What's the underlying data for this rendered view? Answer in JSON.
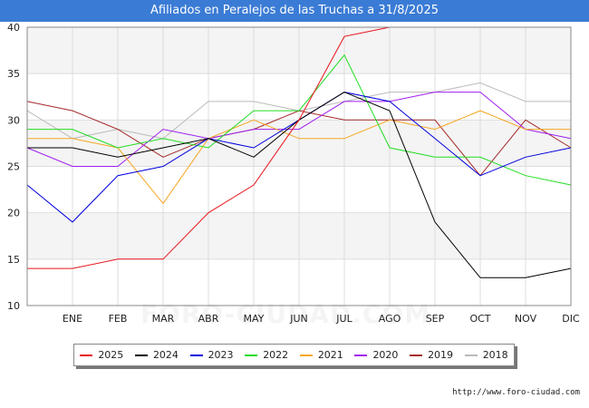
{
  "title": "Afiliados en Peralejos de las Truchas a 31/8/2025",
  "footer_url": "http://www.foro-ciudad.com",
  "watermark": "FORO-CIUDAD.COM",
  "chart_data": {
    "type": "line",
    "title": "Afiliados en Peralejos de las Truchas a 31/8/2025",
    "categories": [
      "",
      "ENE",
      "FEB",
      "MAR",
      "ABR",
      "MAY",
      "JUN",
      "JUL",
      "AGO",
      "SEP",
      "OCT",
      "NOV",
      "DIC"
    ],
    "ylim": [
      10,
      40
    ],
    "yticks": [
      10,
      15,
      20,
      25,
      30,
      35,
      40
    ],
    "grid": true,
    "legend_position": "bottom",
    "series": [
      {
        "name": "2025",
        "color": "#e8141b",
        "values": [
          14,
          14,
          15,
          15,
          20,
          23,
          30,
          39,
          40,
          null,
          null,
          null,
          null
        ]
      },
      {
        "name": "2024",
        "color": "#000000",
        "values": [
          27,
          27,
          26,
          27,
          28,
          26,
          30,
          33,
          31,
          19,
          13,
          13,
          14
        ]
      },
      {
        "name": "2023",
        "color": "#0000dd",
        "values": [
          23,
          19,
          24,
          25,
          28,
          27,
          30,
          33,
          32,
          28,
          24,
          26,
          27
        ]
      },
      {
        "name": "2022",
        "color": "#22dd22",
        "values": [
          29,
          29,
          27,
          28,
          27,
          31,
          31,
          37,
          27,
          26,
          26,
          24,
          23
        ]
      },
      {
        "name": "2021",
        "color": "#f5a623",
        "values": [
          28,
          28,
          27,
          21,
          28,
          30,
          28,
          28,
          30,
          29,
          31,
          29,
          29
        ]
      },
      {
        "name": "2020",
        "color": "#a020f0",
        "values": [
          27,
          25,
          25,
          29,
          28,
          29,
          29,
          32,
          32,
          33,
          33,
          29,
          28
        ]
      },
      {
        "name": "2019",
        "color": "#a52a2a",
        "values": [
          32,
          31,
          29,
          26,
          28,
          29,
          31,
          30,
          30,
          30,
          24,
          30,
          27
        ]
      },
      {
        "name": "2018",
        "color": "#bbbbbb",
        "values": [
          31,
          28,
          29,
          28,
          32,
          32,
          31,
          32,
          33,
          33,
          34,
          32,
          32
        ]
      }
    ]
  }
}
